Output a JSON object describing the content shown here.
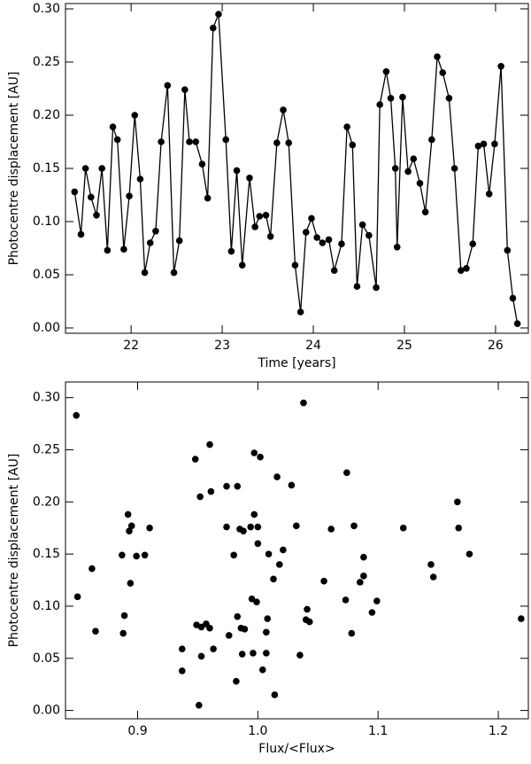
{
  "chart_data": [
    {
      "type": "line",
      "xlabel": "Time [years]",
      "ylabel": "Photocentre displacement [AU]",
      "x": [
        21.38,
        21.45,
        21.5,
        21.56,
        21.62,
        21.68,
        21.74,
        21.8,
        21.85,
        21.92,
        21.98,
        22.04,
        22.1,
        22.15,
        22.21,
        22.27,
        22.33,
        22.4,
        22.47,
        22.53,
        22.59,
        22.64,
        22.71,
        22.78,
        22.84,
        22.9,
        22.96,
        23.04,
        23.1,
        23.16,
        23.22,
        23.3,
        23.36,
        23.41,
        23.48,
        23.53,
        23.6,
        23.67,
        23.73,
        23.8,
        23.86,
        23.92,
        23.98,
        24.04,
        24.1,
        24.17,
        24.23,
        24.31,
        24.37,
        24.43,
        24.48,
        24.54,
        24.61,
        24.69,
        24.73,
        24.8,
        24.85,
        24.9,
        24.92,
        24.98,
        25.04,
        25.1,
        25.17,
        25.23,
        25.3,
        25.36,
        25.42,
        25.49,
        25.55,
        25.62,
        25.68,
        25.75,
        25.81,
        25.87,
        25.93,
        25.99,
        26.06,
        26.13,
        26.19,
        26.24
      ],
      "series": [
        {
          "color": "#000000",
          "values": [
            0.128,
            0.088,
            0.15,
            0.123,
            0.106,
            0.15,
            0.073,
            0.189,
            0.177,
            0.074,
            0.124,
            0.2,
            0.14,
            0.052,
            0.08,
            0.091,
            0.175,
            0.228,
            0.052,
            0.082,
            0.224,
            0.175,
            0.175,
            0.154,
            0.122,
            0.282,
            0.295,
            0.177,
            0.072,
            0.148,
            0.059,
            0.141,
            0.095,
            0.105,
            0.106,
            0.086,
            0.174,
            0.205,
            0.174,
            0.059,
            0.015,
            0.09,
            0.103,
            0.085,
            0.08,
            0.083,
            0.054,
            0.079,
            0.189,
            0.172,
            0.039,
            0.097,
            0.087,
            0.038,
            0.21,
            0.241,
            0.216,
            0.15,
            0.076,
            0.217,
            0.147,
            0.159,
            0.136,
            0.109,
            0.177,
            0.255,
            0.24,
            0.216,
            0.15,
            0.054,
            0.056,
            0.079,
            0.171,
            0.173,
            0.126,
            0.173,
            0.246,
            0.073,
            0.028,
            0.004
          ]
        }
      ],
      "xlim": [
        21.28,
        26.36
      ],
      "xticks": [
        22,
        23,
        24,
        25,
        26
      ],
      "ylim": [
        -0.005,
        0.305
      ],
      "yticks": [
        {
          "value": 0,
          "label": "0.00"
        },
        {
          "value": 0.05,
          "label": "0.05"
        },
        {
          "value": 0.1,
          "label": "0.10"
        },
        {
          "value": 0.15,
          "label": "0.15"
        },
        {
          "value": 0.2,
          "label": "0.20"
        },
        {
          "value": 0.25,
          "label": "0.25"
        },
        {
          "value": 0.3,
          "label": "0.30"
        }
      ]
    },
    {
      "type": "scatter",
      "xlabel": "Flux/<Flux>",
      "ylabel": "Photocentre displacement [AU]",
      "color": "#000000",
      "x": [
        0.849,
        0.85,
        0.862,
        0.865,
        0.888,
        0.889,
        0.887,
        0.892,
        0.893,
        0.895,
        0.894,
        0.899,
        0.906,
        0.91,
        0.937,
        0.937,
        0.948,
        0.949,
        0.951,
        0.953,
        0.952,
        0.953,
        0.957,
        0.96,
        0.96,
        0.961,
        0.963,
        0.974,
        0.974,
        0.976,
        0.98,
        0.982,
        0.983,
        0.983,
        0.985,
        0.986,
        0.987,
        0.988,
        0.989,
        0.994,
        0.995,
        0.996,
        0.997,
        0.997,
        0.999,
        1.0,
        1.0,
        1.002,
        1.004,
        1.007,
        1.007,
        1.008,
        1.009,
        1.013,
        1.014,
        1.016,
        1.018,
        1.021,
        1.028,
        1.032,
        1.035,
        1.038,
        1.04,
        1.041,
        1.043,
        1.055,
        1.061,
        1.073,
        1.074,
        1.078,
        1.08,
        1.085,
        1.088,
        1.088,
        1.095,
        1.099,
        1.121,
        1.144,
        1.146,
        1.166,
        1.167,
        1.176,
        1.219
      ],
      "values": [
        0.283,
        0.109,
        0.136,
        0.076,
        0.074,
        0.091,
        0.149,
        0.188,
        0.172,
        0.177,
        0.122,
        0.148,
        0.149,
        0.175,
        0.059,
        0.038,
        0.241,
        0.082,
        0.005,
        0.08,
        0.205,
        0.052,
        0.083,
        0.255,
        0.079,
        0.21,
        0.059,
        0.215,
        0.176,
        0.072,
        0.149,
        0.028,
        0.09,
        0.215,
        0.174,
        0.079,
        0.054,
        0.172,
        0.078,
        0.176,
        0.107,
        0.055,
        0.247,
        0.188,
        0.104,
        0.176,
        0.16,
        0.243,
        0.039,
        0.075,
        0.055,
        0.088,
        0.15,
        0.126,
        0.015,
        0.224,
        0.14,
        0.154,
        0.216,
        0.177,
        0.053,
        0.295,
        0.087,
        0.097,
        0.085,
        0.124,
        0.174,
        0.106,
        0.228,
        0.074,
        0.177,
        0.123,
        0.147,
        0.129,
        0.094,
        0.105,
        0.175,
        0.14,
        0.128,
        0.2,
        0.175,
        0.15,
        0.088
      ],
      "xlim": [
        0.84,
        1.225
      ],
      "xticks": [
        0.9,
        {
          "value": 1,
          "label": "1.0"
        },
        1.1,
        1.2
      ],
      "ylim": [
        -0.008,
        0.315
      ],
      "yticks": [
        {
          "value": 0,
          "label": "0.00"
        },
        {
          "value": 0.05,
          "label": "0.05"
        },
        {
          "value": 0.1,
          "label": "0.10"
        },
        {
          "value": 0.15,
          "label": "0.15"
        },
        {
          "value": 0.2,
          "label": "0.20"
        },
        {
          "value": 0.25,
          "label": "0.25"
        },
        {
          "value": 0.3,
          "label": "0.30"
        }
      ]
    }
  ]
}
